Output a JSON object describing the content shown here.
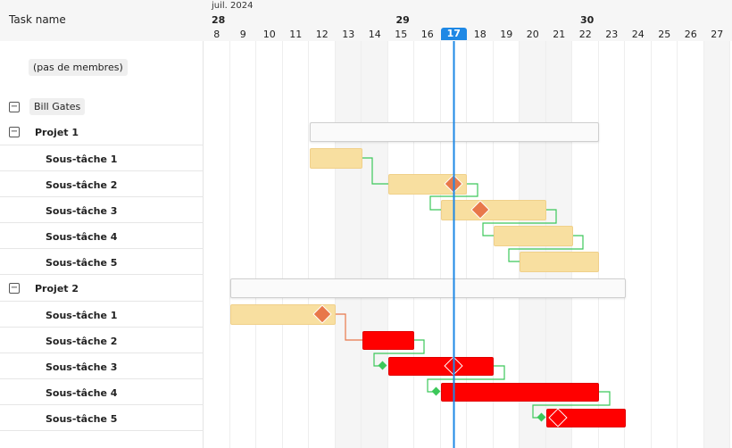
{
  "header": {
    "task_col": "Task name"
  },
  "timeline": {
    "month": "juil. 2024",
    "weeks": [
      {
        "label": "28",
        "day_index": 0
      },
      {
        "label": "29",
        "day_index": 7
      },
      {
        "label": "30",
        "day_index": 14
      }
    ],
    "days": [
      "8",
      "9",
      "10",
      "11",
      "12",
      "13",
      "14",
      "15",
      "16",
      "17",
      "18",
      "19",
      "20",
      "21",
      "22",
      "23",
      "24",
      "25",
      "26",
      "27"
    ],
    "today": "17",
    "weekend_days": [
      "13",
      "14",
      "20",
      "21",
      "27"
    ]
  },
  "rows": {
    "no_members": "(pas de membres)",
    "group": "Bill Gates",
    "project1": {
      "name": "Projet 1",
      "toggle": "−",
      "tasks": [
        "Sous-tâche 1",
        "Sous-tâche 2",
        "Sous-tâche 3",
        "Sous-tâche 4",
        "Sous-tâche 5"
      ]
    },
    "project2": {
      "name": "Projet 2",
      "toggle": "−",
      "tasks": [
        "Sous-tâche 1",
        "Sous-tâche 2",
        "Sous-tâche 3",
        "Sous-tâche 4",
        "Sous-tâche 5"
      ]
    },
    "group_toggle": "−"
  },
  "colors": {
    "today_line": "#1e88e5",
    "task": "#f8dfa0",
    "late": "#ff0000",
    "milestone": "#e8784a",
    "link_ok": "#3cc85a",
    "link_late": "#e8784a"
  }
}
